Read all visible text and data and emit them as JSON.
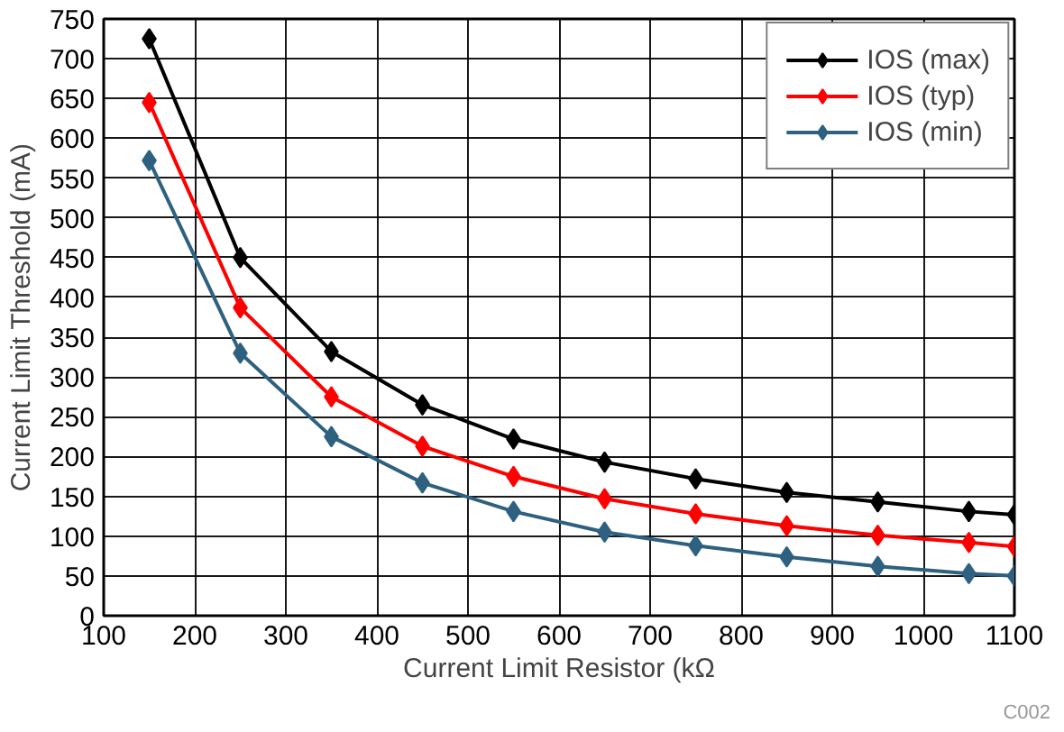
{
  "chart_data": {
    "type": "line",
    "xlabel": "Current Limit Resistor (kΩ",
    "ylabel": "Current Limit Threshold (mA)",
    "annotations": [
      "C002"
    ],
    "x": [
      150,
      250,
      350,
      450,
      550,
      650,
      750,
      850,
      950,
      1050,
      1100
    ],
    "series": [
      {
        "name": "IOS (max)",
        "color": "#000000",
        "values": [
          725,
          450,
          332,
          265,
          222,
          193,
          172,
          155,
          143,
          131,
          127
        ]
      },
      {
        "name": "IOS (typ)",
        "color": "#ff0000",
        "values": [
          645,
          387,
          275,
          213,
          175,
          147,
          128,
          113,
          101,
          92,
          87
        ]
      },
      {
        "name": "IOS (min)",
        "color": "#2e6180",
        "values": [
          572,
          330,
          225,
          167,
          131,
          105,
          88,
          74,
          62,
          53,
          50
        ]
      }
    ],
    "xlim": [
      100,
      1100
    ],
    "xticks": [
      100,
      200,
      300,
      400,
      500,
      600,
      700,
      800,
      900,
      1000,
      1100
    ],
    "ylim": [
      0,
      750
    ],
    "yticks": [
      0,
      50,
      100,
      150,
      200,
      250,
      300,
      350,
      400,
      450,
      500,
      550,
      600,
      650,
      700,
      750
    ],
    "grid": true,
    "legend": "top right",
    "marker": "diamond",
    "line_style": "solid"
  }
}
